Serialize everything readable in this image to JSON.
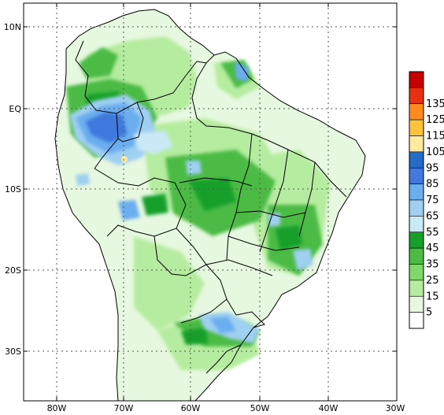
{
  "map": {
    "lon_ticks": [
      "80W",
      "70W",
      "60W",
      "50W",
      "40W",
      "30W"
    ],
    "lat_ticks": [
      "10N",
      "EQ",
      "10S",
      "20S",
      "30S"
    ],
    "grid": "dotted",
    "extent": {
      "lon": [
        -86,
        -30
      ],
      "lat": [
        13,
        -36
      ]
    }
  },
  "colorbar": {
    "placement": "right",
    "levels": [
      "5",
      "15",
      "25",
      "35",
      "45",
      "55",
      "65",
      "75",
      "85",
      "95",
      "105",
      "115",
      "125",
      "135"
    ],
    "colors": [
      "#ffffff",
      "#e6f8df",
      "#b5ec9f",
      "#7fd96a",
      "#4cbb45",
      "#16a02a",
      "#c9e9f6",
      "#9fd0f2",
      "#6aaeef",
      "#4179de",
      "#236dc8",
      "#ffeaa0",
      "#ffc23b",
      "#ff8a20",
      "#e63010",
      "#c80000"
    ]
  }
}
